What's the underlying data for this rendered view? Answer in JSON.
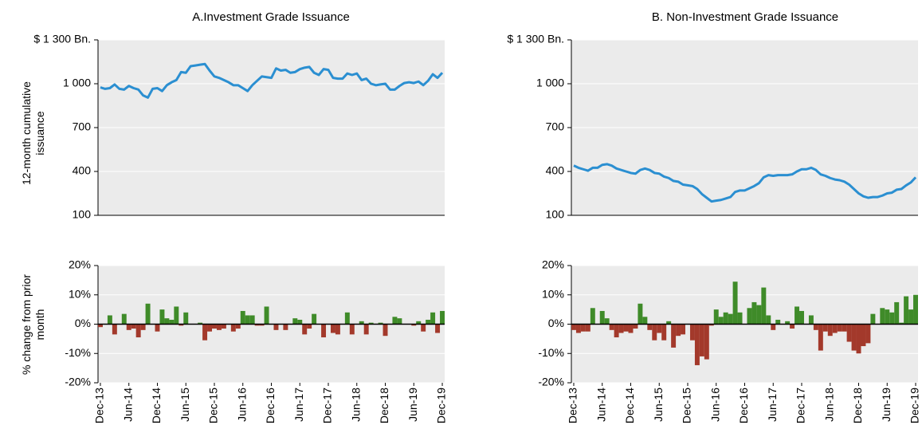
{
  "chart_data": [
    {
      "type": "line",
      "title": "A.Investment Grade Issuance",
      "y_label": "12-month cumulative issuance",
      "color": "#2b8fd1",
      "ylim": [
        100,
        1300
      ],
      "yticks": [
        100,
        400,
        700,
        {
          "value": 1000,
          "label": "1 000"
        },
        {
          "value": 1300,
          "label": "$ 1 300 Bn."
        }
      ],
      "grid": true,
      "values": [
        975,
        965,
        970,
        995,
        965,
        960,
        985,
        970,
        960,
        920,
        905,
        965,
        970,
        950,
        990,
        1010,
        1025,
        1080,
        1075,
        1120,
        1125,
        1130,
        1135,
        1090,
        1050,
        1040,
        1025,
        1010,
        990,
        990,
        970,
        950,
        990,
        1020,
        1050,
        1045,
        1040,
        1105,
        1090,
        1095,
        1075,
        1080,
        1100,
        1110,
        1115,
        1075,
        1060,
        1100,
        1095,
        1040,
        1035,
        1035,
        1070,
        1060,
        1070,
        1025,
        1035,
        1000,
        990,
        995,
        1000,
        960,
        960,
        985,
        1005,
        1010,
        1005,
        1015,
        990,
        1020,
        1065,
        1040,
        1075
      ]
    },
    {
      "type": "bar",
      "y_label": "% change from prior month",
      "positive_color": "#3f8b29",
      "negative_color": "#a3392b",
      "ylim": [
        -20,
        20
      ],
      "yticks": [
        {
          "value": -20,
          "label": "-20%"
        },
        {
          "value": -10,
          "label": "-10%"
        },
        {
          "value": 0,
          "label": "0%"
        },
        {
          "value": 10,
          "label": "10%"
        },
        {
          "value": 20,
          "label": "20%"
        }
      ],
      "grid": true,
      "categories": [
        "Dec-13",
        null,
        null,
        null,
        null,
        null,
        "Jun-14",
        null,
        null,
        null,
        null,
        null,
        "Dec-14",
        null,
        null,
        null,
        null,
        null,
        "Jun-15",
        null,
        null,
        null,
        null,
        null,
        "Dec-15",
        null,
        null,
        null,
        null,
        null,
        "Jun-16",
        null,
        null,
        null,
        null,
        null,
        "Dec-16",
        null,
        null,
        null,
        null,
        null,
        "Jun-17",
        null,
        null,
        null,
        null,
        null,
        "Dec-17",
        null,
        null,
        null,
        null,
        null,
        "Jun-18",
        null,
        null,
        null,
        null,
        null,
        "Dec-18",
        null,
        null,
        null,
        null,
        null,
        "Jun-19",
        null,
        null,
        null,
        null,
        null,
        "Dec-19"
      ],
      "values": [
        -1,
        0,
        3,
        -3.5,
        0,
        3.5,
        -2,
        -1.5,
        -4.5,
        -2,
        7,
        0,
        -2.5,
        5,
        2,
        1.5,
        6,
        -0.5,
        4,
        0,
        0,
        0.5,
        -5.5,
        -2.5,
        -1.5,
        -2,
        -1.5,
        0,
        -2.5,
        -1.5,
        4.5,
        3,
        3,
        -0.5,
        -0.5,
        6,
        0,
        -2,
        0,
        -2,
        0,
        2,
        1.5,
        -3.5,
        -1.5,
        3.5,
        0,
        -4.5,
        0,
        -3,
        -3.5,
        0,
        4,
        -3.5,
        0,
        1,
        -3.5,
        0.5,
        0,
        0.5,
        -4,
        0,
        2.5,
        2,
        0,
        0,
        -0.5,
        1,
        -2.5,
        1.5,
        4,
        -3,
        4.5
      ]
    },
    {
      "type": "line",
      "title": "B. Non-Investment Grade Issuance",
      "color": "#2b8fd1",
      "ylim": [
        100,
        1300
      ],
      "yticks": [
        100,
        400,
        700,
        {
          "value": 1000,
          "label": "1 000"
        },
        {
          "value": 1300,
          "label": "$ 1 300 Bn."
        }
      ],
      "grid": true,
      "values": [
        440,
        425,
        415,
        405,
        425,
        425,
        445,
        450,
        440,
        420,
        410,
        400,
        390,
        385,
        410,
        420,
        410,
        390,
        385,
        365,
        355,
        335,
        330,
        310,
        305,
        300,
        280,
        245,
        220,
        195,
        200,
        205,
        215,
        225,
        260,
        270,
        270,
        285,
        300,
        320,
        360,
        375,
        370,
        375,
        375,
        375,
        380,
        400,
        415,
        415,
        425,
        410,
        380,
        370,
        355,
        345,
        340,
        330,
        310,
        280,
        250,
        230,
        220,
        225,
        225,
        235,
        250,
        255,
        275,
        280,
        305,
        325,
        360
      ]
    },
    {
      "type": "bar",
      "positive_color": "#3f8b29",
      "negative_color": "#a3392b",
      "ylim": [
        -20,
        20
      ],
      "yticks": [
        {
          "value": -20,
          "label": "-20%"
        },
        {
          "value": -10,
          "label": "-10%"
        },
        {
          "value": 0,
          "label": "0%"
        },
        {
          "value": 10,
          "label": "10%"
        },
        {
          "value": 20,
          "label": "20%"
        }
      ],
      "grid": true,
      "categories": [
        "Dec-13",
        null,
        null,
        null,
        null,
        null,
        "Jun-14",
        null,
        null,
        null,
        null,
        null,
        "Dec-14",
        null,
        null,
        null,
        null,
        null,
        "Jun-15",
        null,
        null,
        null,
        null,
        null,
        "Dec-15",
        null,
        null,
        null,
        null,
        null,
        "Jun-16",
        null,
        null,
        null,
        null,
        null,
        "Dec-16",
        null,
        null,
        null,
        null,
        null,
        "Jun-17",
        null,
        null,
        null,
        null,
        null,
        "Dec-17",
        null,
        null,
        null,
        null,
        null,
        "Jun-18",
        null,
        null,
        null,
        null,
        null,
        "Dec-18",
        null,
        null,
        null,
        null,
        null,
        "Jun-19",
        null,
        null,
        null,
        null,
        null,
        "Dec-19"
      ],
      "values": [
        -2,
        -3,
        -2.5,
        -2.5,
        5.5,
        0,
        4.5,
        2,
        -2,
        -4.5,
        -3,
        -2.5,
        -3,
        -1.5,
        7,
        2.5,
        -2,
        -5.5,
        -3,
        -5.5,
        1,
        -8,
        -4,
        -3.5,
        0,
        -5.5,
        -14,
        -11,
        -12,
        -0.5,
        5,
        2.5,
        4,
        3.5,
        14.5,
        4,
        0,
        5.5,
        7.5,
        6.5,
        12.5,
        3,
        -2,
        1.5,
        0,
        1,
        -1.5,
        6,
        4.5,
        0,
        3,
        -2,
        -9,
        -2.5,
        -4,
        -3,
        -2.5,
        -2.5,
        -6,
        -9,
        -10,
        -7.5,
        -6.5,
        3.5,
        0,
        5.5,
        5,
        4,
        7.5,
        0.5,
        9.5,
        5,
        10
      ]
    }
  ]
}
